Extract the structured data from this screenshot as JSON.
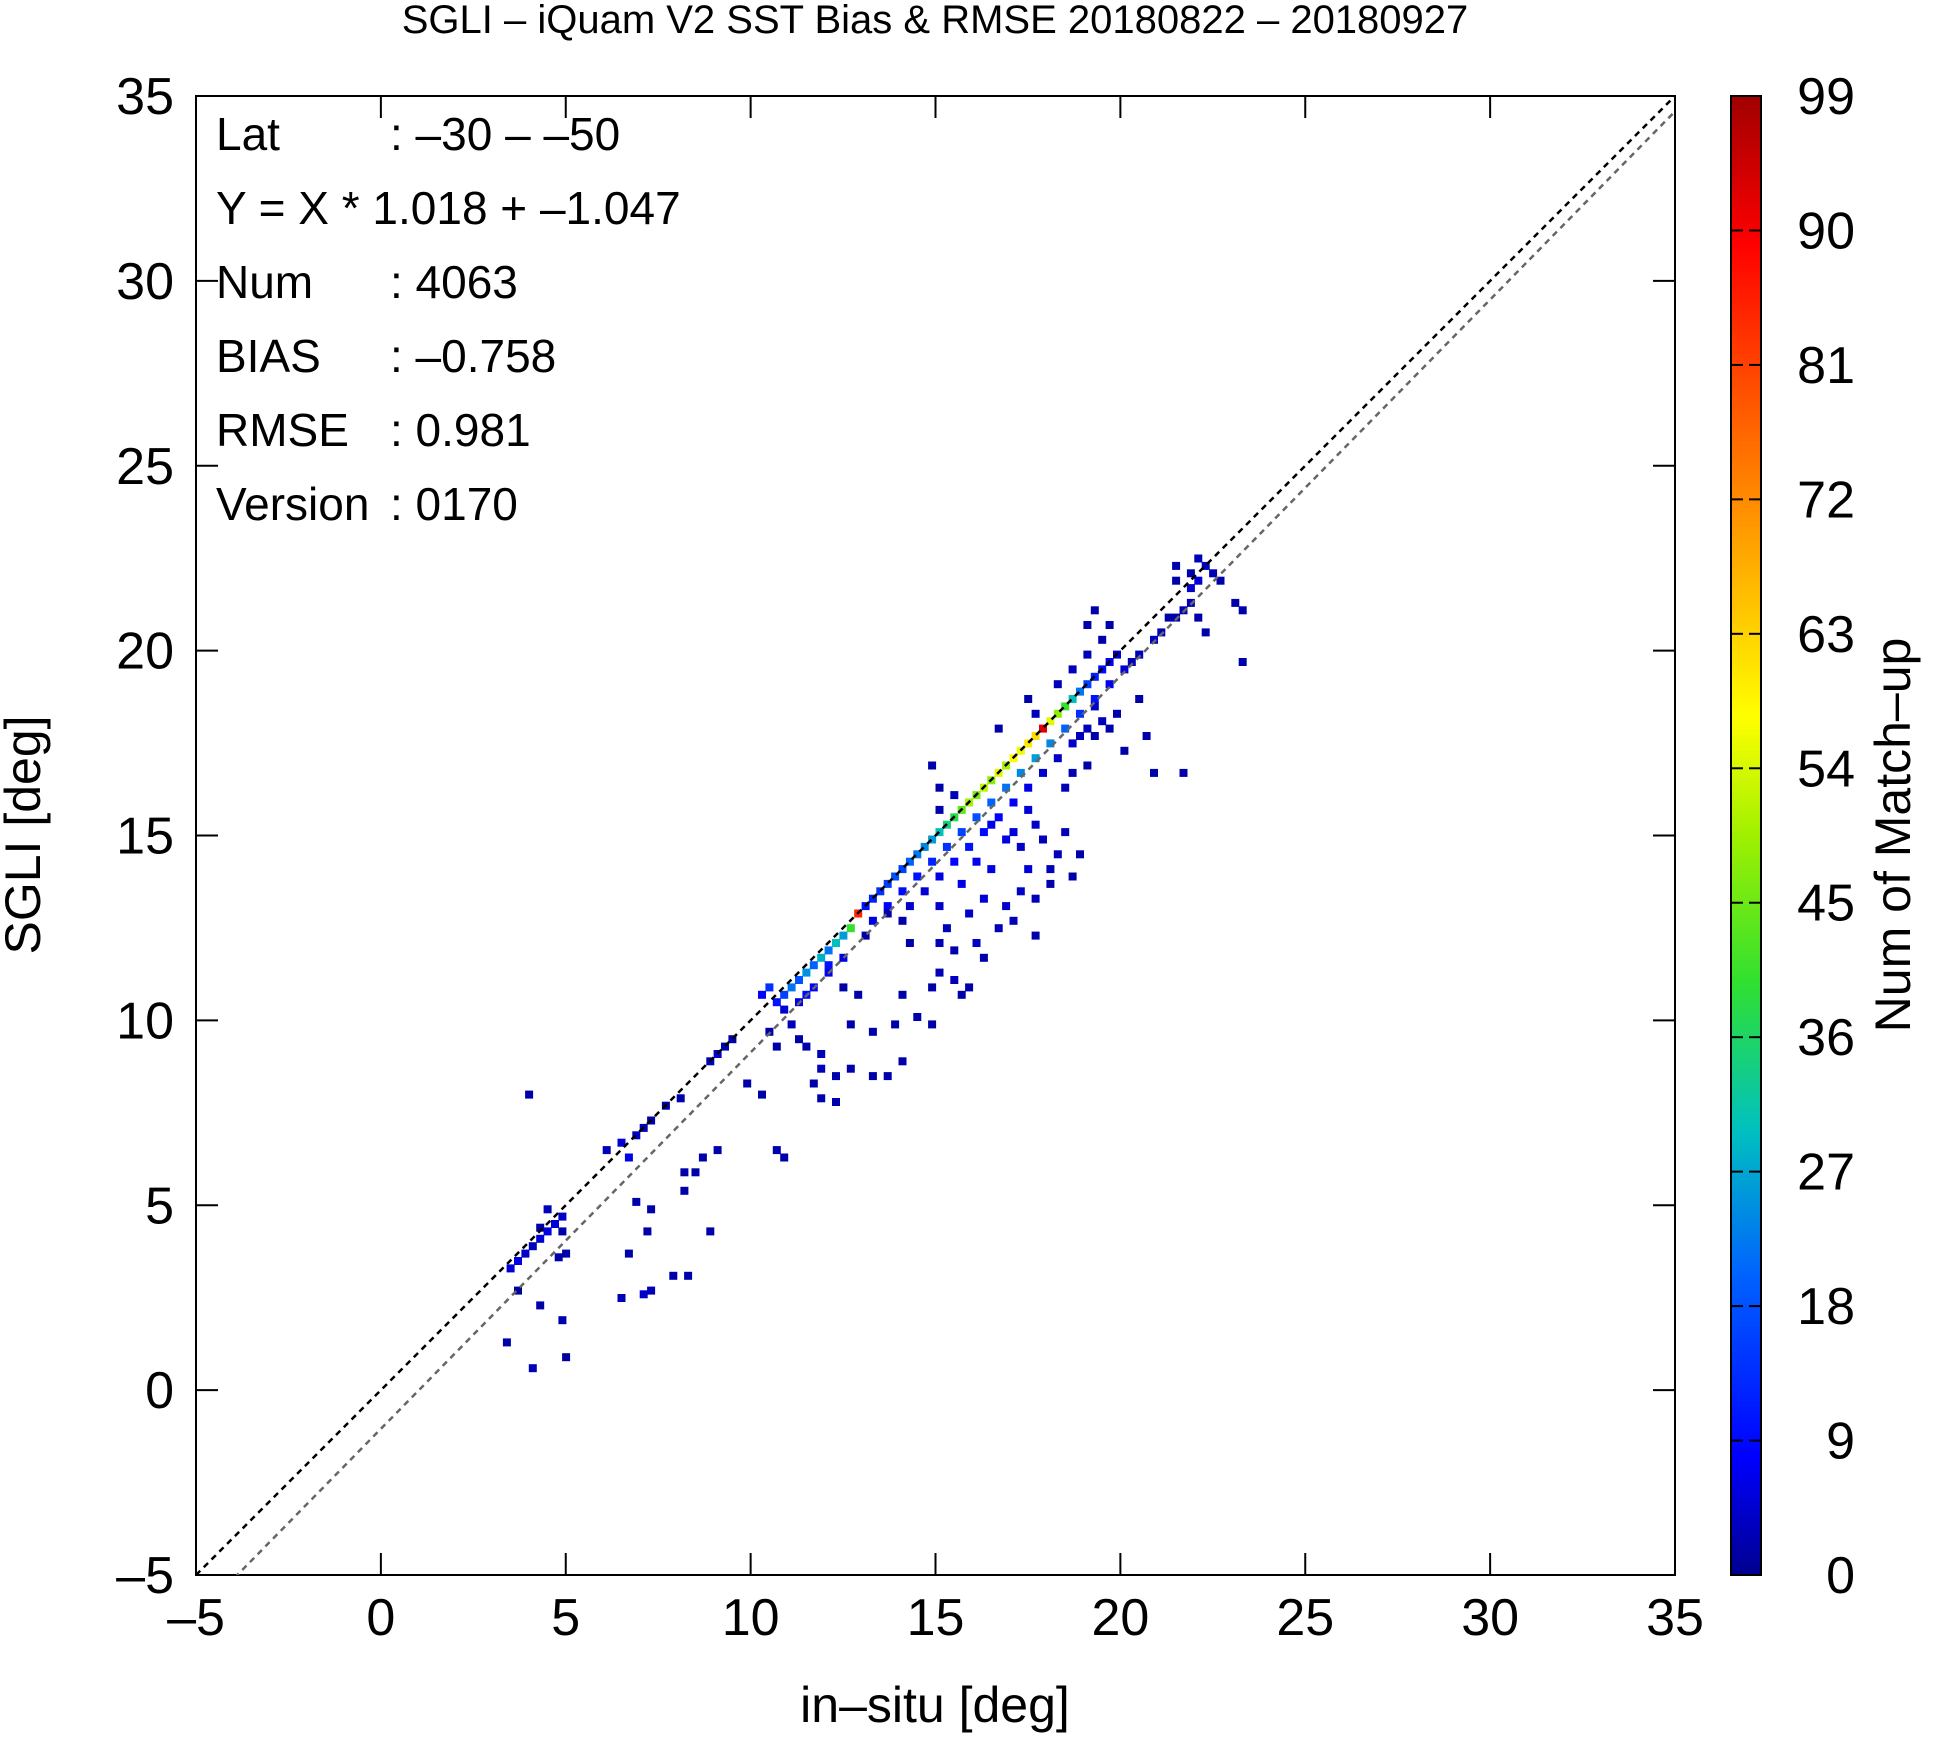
{
  "chart_data": {
    "type": "heatmap",
    "title": "SGLI – iQuam V2 SST Bias & RMSE 20180822 – 20180927",
    "xlabel": "in–situ [deg]",
    "ylabel": "SGLI [deg]",
    "xlim": [
      -5,
      35
    ],
    "ylim": [
      -5,
      35
    ],
    "x_ticks": [
      "–5",
      "0",
      "5",
      "10",
      "15",
      "20",
      "25",
      "30",
      "35"
    ],
    "y_ticks": [
      "–5",
      "0",
      "5",
      "10",
      "15",
      "20",
      "25",
      "30",
      "35"
    ],
    "tick_values": [
      -5,
      0,
      5,
      10,
      15,
      20,
      25,
      30,
      35
    ],
    "grid": false,
    "reference_lines": [
      {
        "label": "1:1",
        "slope": 1.0,
        "intercept": 0.0,
        "color": "#000000"
      },
      {
        "label": "regression",
        "slope": 1.018,
        "intercept": -1.047,
        "color": "#666666"
      }
    ],
    "stats": [
      {
        "label": "Lat",
        "value": ": –30 – –50"
      },
      {
        "label": "Y = X * 1.018 + –1.047",
        "value": ""
      },
      {
        "label": "Num",
        "value": ": 4063"
      },
      {
        "label": "BIAS",
        "value": ": –0.758"
      },
      {
        "label": "RMSE",
        "value": ": 0.981"
      },
      {
        "label": "Version",
        "value": ": 0170"
      }
    ],
    "colorbar": {
      "label": "Num of Match–up",
      "min": 0,
      "max": 99,
      "ticks": [
        "0",
        "9",
        "18",
        "27",
        "36",
        "45",
        "54",
        "63",
        "72",
        "81",
        "90",
        "99"
      ],
      "tick_values": [
        0,
        9,
        18,
        27,
        36,
        45,
        54,
        63,
        72,
        81,
        90,
        99
      ]
    },
    "bin_size": 0.2,
    "cells": [
      [
        3.4,
        3.2,
        5
      ],
      [
        3.6,
        3.4,
        6
      ],
      [
        3.8,
        3.6,
        4
      ],
      [
        4.0,
        3.8,
        3
      ],
      [
        4.2,
        4.0,
        5
      ],
      [
        4.4,
        4.2,
        6
      ],
      [
        4.6,
        4.4,
        5
      ],
      [
        4.8,
        4.6,
        4
      ],
      [
        4.4,
        4.8,
        3
      ],
      [
        4.2,
        4.3,
        2
      ],
      [
        4.8,
        4.2,
        2
      ],
      [
        4.9,
        3.6,
        2
      ],
      [
        4.7,
        3.5,
        2
      ],
      [
        3.6,
        2.6,
        1
      ],
      [
        4.2,
        2.2,
        2
      ],
      [
        4.8,
        1.8,
        2
      ],
      [
        3.3,
        1.2,
        2
      ],
      [
        4.0,
        0.5,
        3
      ],
      [
        4.9,
        0.8,
        1
      ],
      [
        3.9,
        7.9,
        2
      ],
      [
        6.0,
        6.4,
        3
      ],
      [
        6.4,
        6.6,
        5
      ],
      [
        6.6,
        6.2,
        6
      ],
      [
        6.8,
        6.8,
        4
      ],
      [
        7.0,
        7.0,
        3
      ],
      [
        7.2,
        7.2,
        2
      ],
      [
        7.6,
        7.6,
        2
      ],
      [
        8.0,
        7.8,
        2
      ],
      [
        6.8,
        5.0,
        2
      ],
      [
        7.2,
        4.8,
        2
      ],
      [
        7.1,
        4.2,
        2
      ],
      [
        6.6,
        3.6,
        2
      ],
      [
        6.4,
        2.4,
        3
      ],
      [
        7.0,
        2.5,
        4
      ],
      [
        7.2,
        2.6,
        3
      ],
      [
        7.8,
        3.0,
        2
      ],
      [
        8.2,
        3.0,
        2
      ],
      [
        8.1,
        5.8,
        2
      ],
      [
        8.1,
        5.3,
        2
      ],
      [
        8.6,
        6.2,
        2
      ],
      [
        8.4,
        5.8,
        2
      ],
      [
        9.0,
        6.4,
        2
      ],
      [
        8.8,
        4.2,
        2
      ],
      [
        8.8,
        8.8,
        3
      ],
      [
        9.0,
        9.0,
        4
      ],
      [
        9.2,
        9.2,
        3
      ],
      [
        9.4,
        9.4,
        2
      ],
      [
        9.8,
        8.2,
        2
      ],
      [
        10.2,
        7.9,
        2
      ],
      [
        10.6,
        6.4,
        2
      ],
      [
        10.8,
        6.2,
        2
      ],
      [
        10.2,
        10.6,
        8
      ],
      [
        10.4,
        10.8,
        14
      ],
      [
        10.6,
        10.4,
        10
      ],
      [
        10.8,
        10.6,
        16
      ],
      [
        11.0,
        10.8,
        22
      ],
      [
        11.2,
        11.0,
        18
      ],
      [
        11.4,
        11.2,
        25
      ],
      [
        11.6,
        11.4,
        20
      ],
      [
        11.8,
        11.6,
        28
      ],
      [
        12.0,
        11.8,
        22
      ],
      [
        12.2,
        12.0,
        30
      ],
      [
        12.4,
        12.2,
        26
      ],
      [
        12.6,
        12.4,
        40
      ],
      [
        12.8,
        12.8,
        85
      ],
      [
        10.8,
        10.2,
        5
      ],
      [
        11.2,
        10.4,
        6
      ],
      [
        11.6,
        10.8,
        8
      ],
      [
        12.0,
        11.2,
        7
      ],
      [
        12.4,
        11.6,
        6
      ],
      [
        11.4,
        10.6,
        9
      ],
      [
        12.0,
        11.4,
        10
      ],
      [
        10.4,
        9.6,
        2
      ],
      [
        10.6,
        9.2,
        2
      ],
      [
        11.0,
        9.8,
        3
      ],
      [
        11.2,
        9.4,
        2
      ],
      [
        11.4,
        9.2,
        2
      ],
      [
        11.8,
        9.0,
        3
      ],
      [
        11.8,
        8.6,
        3
      ],
      [
        11.6,
        8.2,
        2
      ],
      [
        12.2,
        8.4,
        2
      ],
      [
        11.8,
        7.8,
        2
      ],
      [
        12.2,
        7.7,
        2
      ],
      [
        12.6,
        9.8,
        2
      ],
      [
        12.6,
        8.6,
        2
      ],
      [
        13.2,
        8.4,
        2
      ],
      [
        13.6,
        8.4,
        2
      ],
      [
        13.2,
        9.6,
        2
      ],
      [
        14.0,
        8.8,
        2
      ],
      [
        13.8,
        9.8,
        2
      ],
      [
        14.4,
        10.0,
        2
      ],
      [
        14.8,
        9.8,
        2
      ],
      [
        14.0,
        10.6,
        2
      ],
      [
        12.4,
        10.8,
        2
      ],
      [
        12.8,
        10.6,
        2
      ],
      [
        13.0,
        13.0,
        10
      ],
      [
        13.2,
        13.2,
        12
      ],
      [
        13.4,
        13.4,
        14
      ],
      [
        13.6,
        13.6,
        16
      ],
      [
        13.8,
        13.8,
        18
      ],
      [
        14.0,
        14.0,
        16
      ],
      [
        14.2,
        14.2,
        20
      ],
      [
        14.4,
        14.4,
        22
      ],
      [
        14.6,
        14.6,
        24
      ],
      [
        14.8,
        14.8,
        26
      ],
      [
        15.0,
        15.0,
        30
      ],
      [
        15.2,
        15.2,
        34
      ],
      [
        15.4,
        15.4,
        38
      ],
      [
        15.6,
        15.6,
        44
      ],
      [
        15.8,
        15.8,
        50
      ],
      [
        16.0,
        16.0,
        46
      ],
      [
        16.2,
        16.2,
        52
      ],
      [
        16.4,
        16.4,
        48
      ],
      [
        16.6,
        16.6,
        55
      ],
      [
        16.8,
        16.8,
        50
      ],
      [
        17.0,
        17.0,
        58
      ],
      [
        17.2,
        17.2,
        56
      ],
      [
        17.4,
        17.4,
        60
      ],
      [
        17.6,
        17.6,
        62
      ],
      [
        17.8,
        17.8,
        92
      ],
      [
        18.0,
        18.0,
        55
      ],
      [
        18.2,
        18.2,
        48
      ],
      [
        18.4,
        18.4,
        40
      ],
      [
        18.6,
        18.6,
        30
      ],
      [
        18.8,
        18.8,
        22
      ],
      [
        19.0,
        19.0,
        16
      ],
      [
        19.2,
        19.2,
        12
      ],
      [
        19.4,
        19.4,
        9
      ],
      [
        19.6,
        19.6,
        7
      ],
      [
        19.8,
        19.8,
        5
      ],
      [
        13.2,
        12.6,
        6
      ],
      [
        13.6,
        13.0,
        8
      ],
      [
        14.0,
        13.4,
        9
      ],
      [
        14.4,
        13.8,
        10
      ],
      [
        14.8,
        14.2,
        12
      ],
      [
        15.2,
        14.6,
        14
      ],
      [
        15.6,
        15.0,
        16
      ],
      [
        16.0,
        15.4,
        18
      ],
      [
        16.4,
        15.8,
        20
      ],
      [
        16.8,
        16.2,
        22
      ],
      [
        17.2,
        16.6,
        24
      ],
      [
        17.6,
        17.0,
        26
      ],
      [
        18.0,
        17.4,
        24
      ],
      [
        18.4,
        17.8,
        20
      ],
      [
        18.8,
        18.2,
        14
      ],
      [
        19.2,
        18.6,
        10
      ],
      [
        19.6,
        19.0,
        7
      ],
      [
        20.0,
        19.4,
        5
      ],
      [
        14.2,
        13.0,
        4
      ],
      [
        14.6,
        13.4,
        5
      ],
      [
        15.0,
        13.8,
        6
      ],
      [
        15.4,
        14.2,
        8
      ],
      [
        15.8,
        14.6,
        10
      ],
      [
        16.2,
        15.0,
        9
      ],
      [
        16.6,
        15.4,
        8
      ],
      [
        17.0,
        15.8,
        7
      ],
      [
        17.4,
        16.2,
        6
      ],
      [
        17.8,
        16.6,
        5
      ],
      [
        18.2,
        17.0,
        4
      ],
      [
        18.6,
        17.4,
        4
      ],
      [
        19.0,
        17.8,
        3
      ],
      [
        15.0,
        13.0,
        4
      ],
      [
        15.2,
        12.4,
        3
      ],
      [
        15.0,
        12.0,
        3
      ],
      [
        15.4,
        11.8,
        2
      ],
      [
        15.0,
        11.2,
        3
      ],
      [
        15.4,
        11.0,
        3
      ],
      [
        15.6,
        10.6,
        2
      ],
      [
        15.8,
        10.8,
        2
      ],
      [
        16.0,
        12.0,
        4
      ],
      [
        16.2,
        13.2,
        5
      ],
      [
        16.4,
        14.0,
        6
      ],
      [
        16.0,
        14.2,
        7
      ],
      [
        15.6,
        13.6,
        6
      ],
      [
        15.8,
        12.8,
        4
      ],
      [
        16.6,
        12.4,
        3
      ],
      [
        16.8,
        13.0,
        4
      ],
      [
        17.0,
        12.6,
        3
      ],
      [
        17.2,
        13.4,
        4
      ],
      [
        17.4,
        14.0,
        5
      ],
      [
        17.6,
        12.2,
        2
      ],
      [
        17.6,
        13.2,
        3
      ],
      [
        16.2,
        11.6,
        2
      ],
      [
        14.8,
        10.8,
        2
      ],
      [
        14.2,
        12.0,
        2
      ],
      [
        14.0,
        12.6,
        2
      ],
      [
        13.6,
        12.8,
        2
      ],
      [
        13.0,
        12.2,
        2
      ],
      [
        17.0,
        15.0,
        5
      ],
      [
        17.4,
        15.6,
        5
      ],
      [
        17.2,
        14.6,
        4
      ],
      [
        17.6,
        15.2,
        4
      ],
      [
        17.8,
        14.8,
        3
      ],
      [
        18.0,
        14.0,
        3
      ],
      [
        18.2,
        14.4,
        3
      ],
      [
        18.4,
        15.0,
        3
      ],
      [
        18.8,
        14.4,
        2
      ],
      [
        18.0,
        13.6,
        2
      ],
      [
        18.6,
        13.8,
        2
      ],
      [
        16.4,
        15.2,
        6
      ],
      [
        16.8,
        14.8,
        6
      ],
      [
        15.0,
        16.2,
        2
      ],
      [
        15.4,
        16.0,
        3
      ],
      [
        15.0,
        15.6,
        2
      ],
      [
        14.8,
        16.8,
        2
      ],
      [
        16.6,
        17.8,
        2
      ],
      [
        17.4,
        18.6,
        2
      ],
      [
        17.6,
        18.2,
        3
      ],
      [
        18.2,
        19.0,
        3
      ],
      [
        18.6,
        19.4,
        3
      ],
      [
        19.0,
        19.8,
        3
      ],
      [
        19.4,
        20.2,
        2
      ],
      [
        19.0,
        20.6,
        2
      ],
      [
        19.2,
        21.0,
        2
      ],
      [
        19.6,
        20.6,
        2
      ],
      [
        18.4,
        16.2,
        3
      ],
      [
        18.6,
        16.6,
        3
      ],
      [
        19.0,
        16.8,
        2
      ],
      [
        19.2,
        17.6,
        2
      ],
      [
        19.4,
        18.0,
        3
      ],
      [
        19.8,
        18.2,
        2
      ],
      [
        20.4,
        18.6,
        2
      ],
      [
        19.6,
        17.8,
        2
      ],
      [
        20.0,
        17.2,
        2
      ],
      [
        20.6,
        17.6,
        2
      ],
      [
        20.8,
        16.6,
        2
      ],
      [
        21.6,
        16.6,
        2
      ],
      [
        18.8,
        17.6,
        3
      ],
      [
        19.2,
        18.4,
        4
      ],
      [
        20.2,
        19.6,
        3
      ],
      [
        20.4,
        19.8,
        3
      ],
      [
        20.8,
        20.2,
        4
      ],
      [
        21.0,
        20.4,
        3
      ],
      [
        21.2,
        20.8,
        2
      ],
      [
        21.4,
        20.8,
        2
      ],
      [
        21.6,
        21.0,
        3
      ],
      [
        21.8,
        21.6,
        4
      ],
      [
        22.0,
        21.8,
        5
      ],
      [
        22.2,
        22.2,
        3
      ],
      [
        21.8,
        22.0,
        2
      ],
      [
        21.4,
        21.8,
        2
      ],
      [
        21.8,
        21.2,
        3
      ],
      [
        22.0,
        20.8,
        2
      ],
      [
        22.2,
        20.4,
        2
      ],
      [
        21.4,
        22.2,
        2
      ],
      [
        22.0,
        22.4,
        3
      ],
      [
        22.4,
        22.0,
        3
      ],
      [
        23.0,
        21.2,
        2
      ],
      [
        23.2,
        21.0,
        2
      ],
      [
        23.2,
        19.6,
        2
      ],
      [
        22.6,
        21.8,
        2
      ]
    ]
  }
}
